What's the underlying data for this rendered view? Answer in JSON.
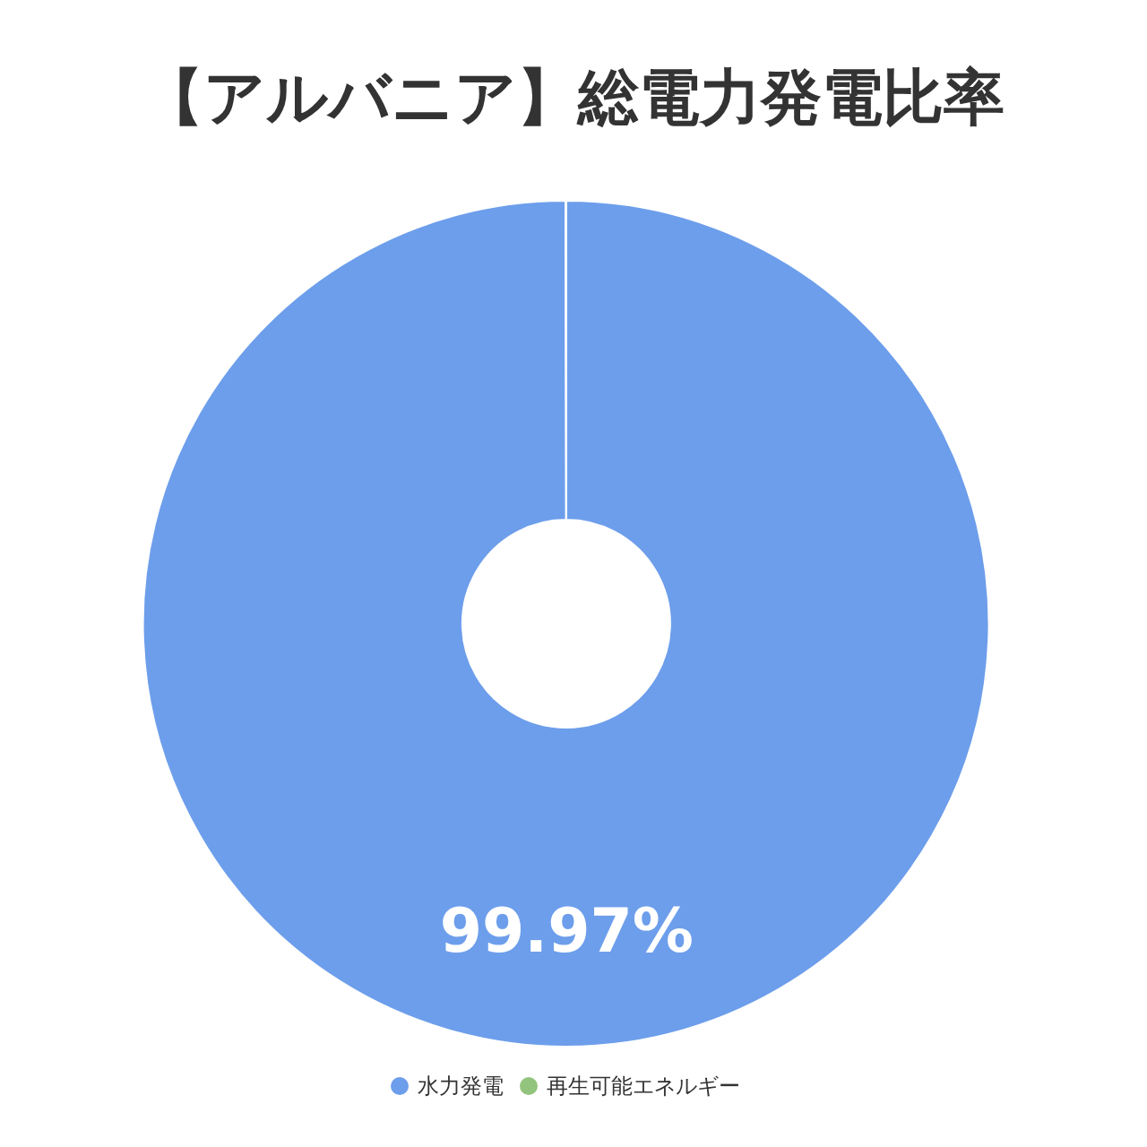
{
  "chart_data": {
    "type": "donut",
    "title": "【アルバニア】総電力発電比率",
    "categories": [
      "水力発電",
      "再生可能エネルギー"
    ],
    "values": [
      99.97,
      0.03
    ],
    "colors": [
      "#6d9eeb",
      "#93c47d"
    ],
    "value_labels": [
      "99.97%",
      null
    ],
    "legend": "bottom"
  }
}
